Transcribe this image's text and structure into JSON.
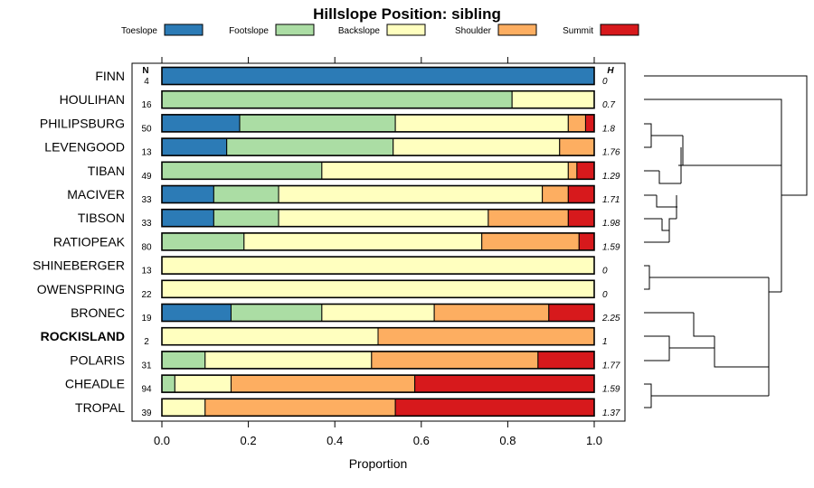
{
  "chart_data": {
    "type": "bar",
    "stacked": true,
    "orientation": "horizontal",
    "title": "Hillslope Position: sibling",
    "xlabel": "Proportion",
    "xlim": [
      0,
      1
    ],
    "xticks": [
      "0.0",
      "0.2",
      "0.4",
      "0.6",
      "0.8",
      "1.0"
    ],
    "n_header": "N",
    "h_header": "H",
    "legend": [
      {
        "name": "Toeslope",
        "color": "#2c7bb6"
      },
      {
        "name": "Footslope",
        "color": "#abdda4"
      },
      {
        "name": "Backslope",
        "color": "#ffffbf"
      },
      {
        "name": "Shoulder",
        "color": "#fdae61"
      },
      {
        "name": "Summit",
        "color": "#d7191c"
      }
    ],
    "rows": [
      {
        "name": "FINN",
        "n": "4",
        "h": "0",
        "bold": false,
        "values": [
          1.0,
          0,
          0,
          0,
          0
        ]
      },
      {
        "name": "HOULIHAN",
        "n": "16",
        "h": "0.7",
        "bold": false,
        "values": [
          0,
          0.81,
          0.19,
          0,
          0
        ]
      },
      {
        "name": "PHILIPSBURG",
        "n": "50",
        "h": "1.8",
        "bold": false,
        "values": [
          0.18,
          0.36,
          0.4,
          0.04,
          0.02
        ]
      },
      {
        "name": "LEVENGOOD",
        "n": "13",
        "h": "1.76",
        "bold": false,
        "values": [
          0.15,
          0.385,
          0.385,
          0.08,
          0
        ]
      },
      {
        "name": "TIBAN",
        "n": "49",
        "h": "1.29",
        "bold": false,
        "values": [
          0,
          0.37,
          0.57,
          0.02,
          0.04
        ]
      },
      {
        "name": "MACIVER",
        "n": "33",
        "h": "1.71",
        "bold": false,
        "values": [
          0.12,
          0.15,
          0.61,
          0.06,
          0.06
        ]
      },
      {
        "name": "TIBSON",
        "n": "33",
        "h": "1.98",
        "bold": false,
        "values": [
          0.12,
          0.15,
          0.485,
          0.185,
          0.06
        ]
      },
      {
        "name": "RATIOPEAK",
        "n": "80",
        "h": "1.59",
        "bold": false,
        "values": [
          0,
          0.19,
          0.55,
          0.225,
          0.035
        ]
      },
      {
        "name": "SHINEBERGER",
        "n": "13",
        "h": "0",
        "bold": false,
        "values": [
          0,
          0,
          1.0,
          0,
          0
        ]
      },
      {
        "name": "OWENSPRING",
        "n": "22",
        "h": "0",
        "bold": false,
        "values": [
          0,
          0,
          1.0,
          0,
          0
        ]
      },
      {
        "name": "BRONEC",
        "n": "19",
        "h": "2.25",
        "bold": false,
        "values": [
          0.16,
          0.21,
          0.26,
          0.265,
          0.105
        ]
      },
      {
        "name": "ROCKISLAND",
        "n": "2",
        "h": "1",
        "bold": true,
        "values": [
          0,
          0,
          0.5,
          0.5,
          0
        ]
      },
      {
        "name": "POLARIS",
        "n": "31",
        "h": "1.77",
        "bold": false,
        "values": [
          0,
          0.1,
          0.385,
          0.385,
          0.13
        ]
      },
      {
        "name": "CHEADLE",
        "n": "94",
        "h": "1.59",
        "bold": false,
        "values": [
          0,
          0.03,
          0.13,
          0.425,
          0.415
        ]
      },
      {
        "name": "TROPAL",
        "n": "39",
        "h": "1.37",
        "bold": false,
        "values": [
          0,
          0,
          0.1,
          0.44,
          0.46
        ]
      }
    ]
  }
}
